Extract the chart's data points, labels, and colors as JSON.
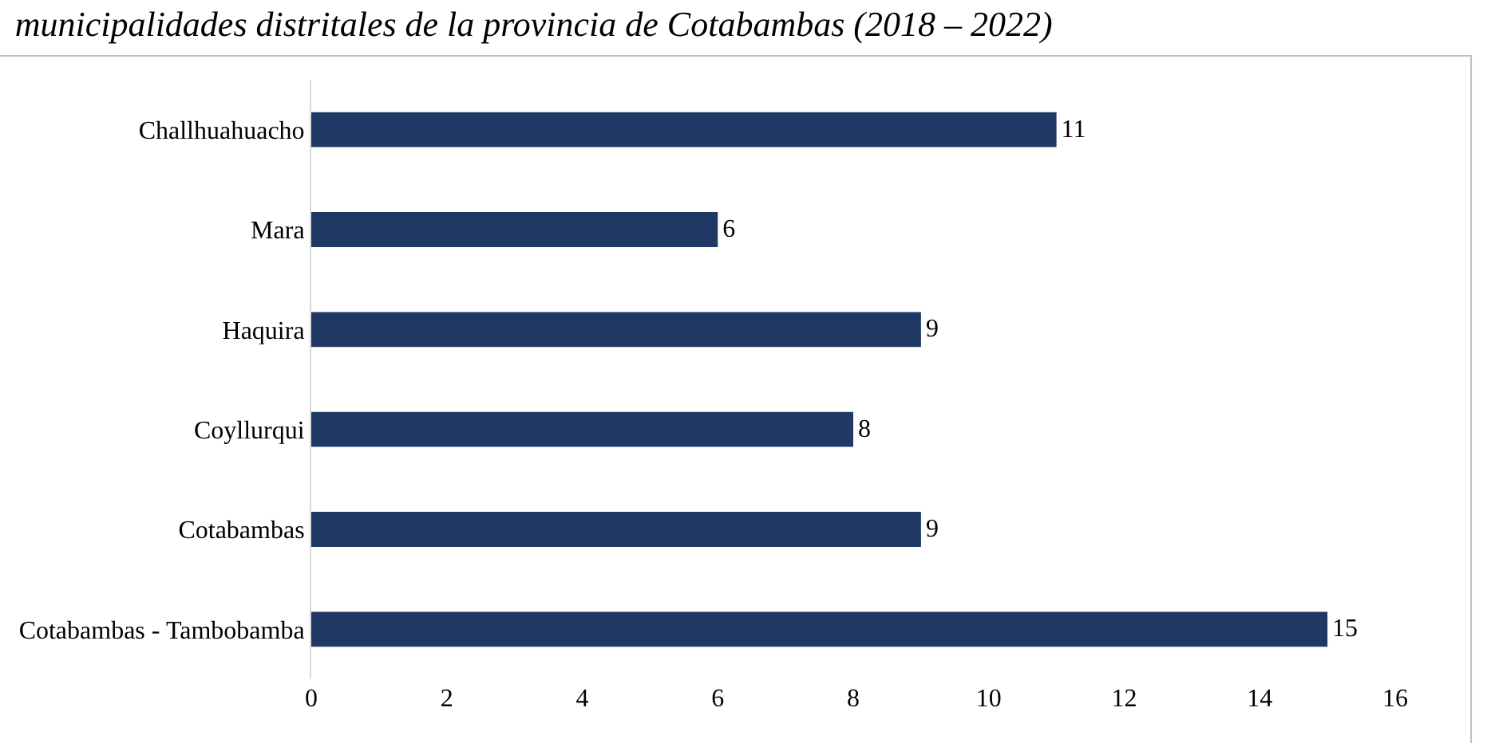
{
  "chart_data": {
    "type": "bar",
    "orientation": "horizontal",
    "title": "municipalidades distritales de la provincia de Cotabambas (2018 – 2022)",
    "categories": [
      "Challhuahuacho",
      "Mara",
      "Haquira",
      "Coyllurqui",
      "Cotabambas",
      "Cotabambas - Tambobamba"
    ],
    "values": [
      11,
      6,
      9,
      8,
      9,
      15
    ],
    "color": "#203864",
    "xlim": [
      0,
      16
    ],
    "xticks": [
      0,
      2,
      4,
      6,
      8,
      10,
      12,
      14,
      16
    ],
    "grid": false,
    "data_labels": true
  }
}
